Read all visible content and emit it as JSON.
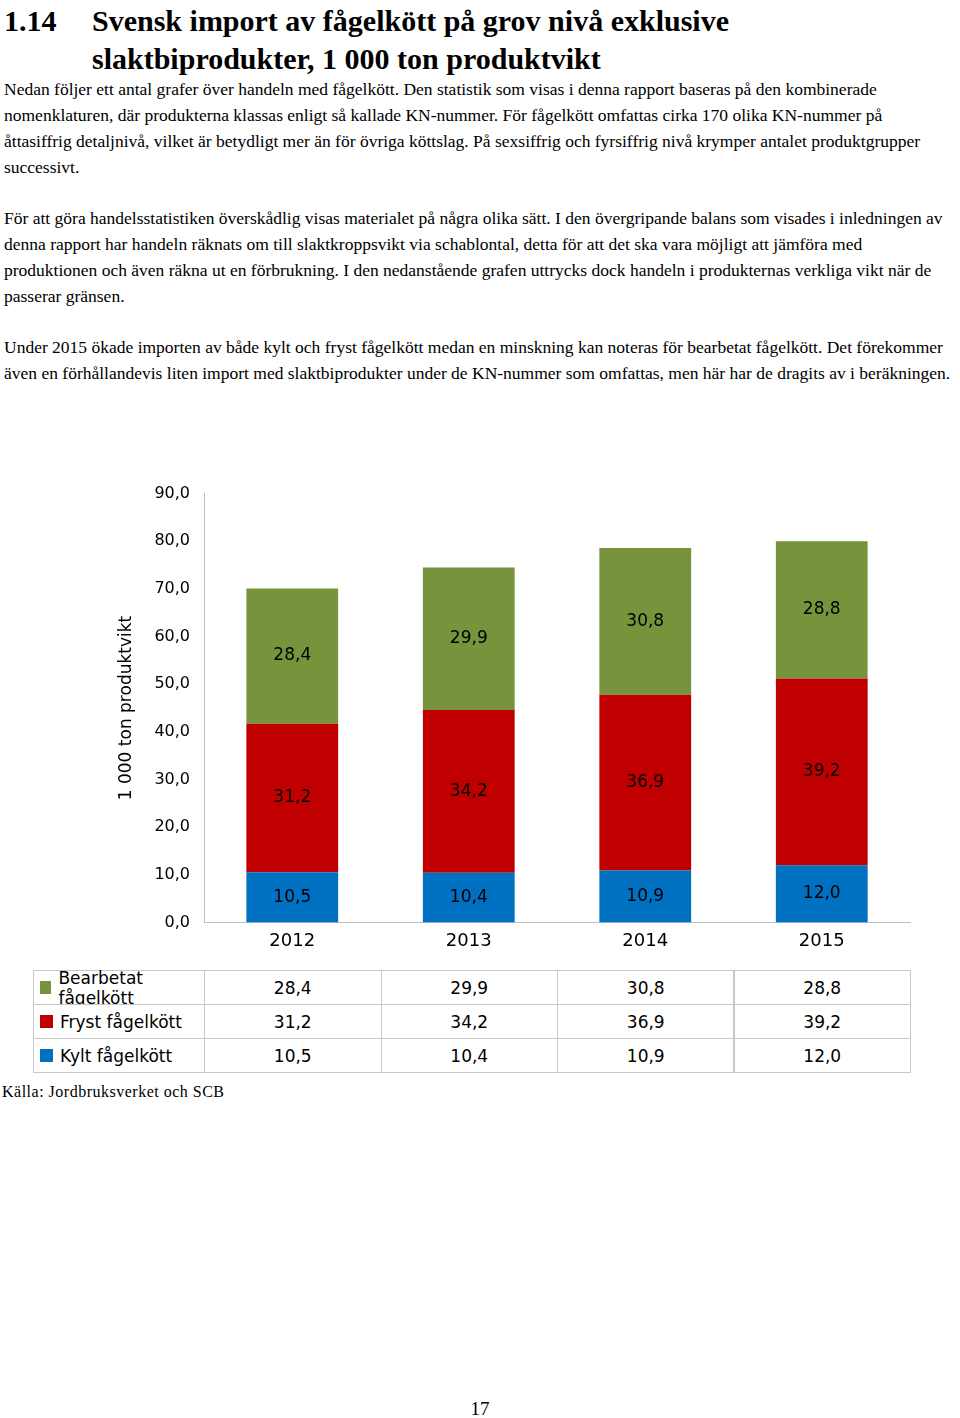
{
  "heading": {
    "number": "1.14",
    "title": "Svensk import av fågelkött på grov nivå exklusive slaktbiprodukter, 1 000 ton produktvikt"
  },
  "paragraphs": [
    "Nedan följer ett antal grafer över handeln med fågelkött. Den statistik som visas i denna rapport baseras på den kombinerade nomenklaturen, där produkterna klassas enligt så kallade KN-nummer. För fågelkött omfattas cirka 170 olika KN-nummer på åttasiffrig detaljnivå, vilket är betydligt mer än för övriga köttslag. På sexsiffrig och fyrsiffrig nivå krymper antalet produktgrupper successivt.",
    "För att göra handelsstatistiken överskådlig visas materialet på några olika sätt. I den övergripande balans som visades i inledningen av denna rapport har handeln räknats om till slaktkroppsvikt via schablontal, detta för att det ska vara möjligt att jämföra med produktionen och även räkna ut en förbrukning. I den nedanstående grafen uttrycks dock handeln i produkternas verkliga vikt när de passerar gränsen.",
    "Under 2015 ökade importen av både kylt och fryst fågelkött medan en minskning kan noteras för bearbetat fågelkött. Det förekommer även en förhållandevis liten import med slaktbiprodukter under de KN-nummer som omfattas, men här har de dragits av i beräkningen."
  ],
  "chart_data": {
    "type": "bar",
    "stacked": true,
    "data_labels": true,
    "grid": false,
    "y_label": "1 000 ton produktvikt",
    "categories": [
      "2012",
      "2013",
      "2014",
      "2015"
    ],
    "ylim": [
      0,
      90
    ],
    "yticks": [
      {
        "value": 0,
        "label": "0,0"
      },
      {
        "value": 10,
        "label": "10,0"
      },
      {
        "value": 20,
        "label": "20,0"
      },
      {
        "value": 30,
        "label": "30,0"
      },
      {
        "value": 40,
        "label": "40,0"
      },
      {
        "value": 50,
        "label": "50,0"
      },
      {
        "value": 60,
        "label": "60,0"
      },
      {
        "value": 70,
        "label": "70,0"
      },
      {
        "value": 80,
        "label": "80,0"
      },
      {
        "value": 90,
        "label": "90,0"
      }
    ],
    "series": [
      {
        "name": "Bearbetat fågelkött",
        "color": "#77933c",
        "values": [
          28.4,
          29.9,
          30.8,
          28.8
        ],
        "value_labels": [
          "28,4",
          "29,9",
          "30,8",
          "28,8"
        ]
      },
      {
        "name": "Fryst fågelkött",
        "color": "#c00000",
        "values": [
          31.2,
          34.2,
          36.9,
          39.2
        ],
        "value_labels": [
          "31,2",
          "34,2",
          "36,9",
          "39,2"
        ]
      },
      {
        "name": "Kylt fågelkött",
        "color": "#0070c0",
        "values": [
          10.5,
          10.4,
          10.9,
          12.0
        ],
        "value_labels": [
          "10,5",
          "10,4",
          "10,9",
          "12,0"
        ]
      }
    ]
  },
  "source": "Källa: Jordbruksverket och SCB",
  "page_number": "17"
}
